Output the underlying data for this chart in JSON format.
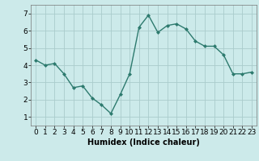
{
  "x": [
    0,
    1,
    2,
    3,
    4,
    5,
    6,
    7,
    8,
    9,
    10,
    11,
    12,
    13,
    14,
    15,
    16,
    17,
    18,
    19,
    20,
    21,
    22,
    23
  ],
  "y": [
    4.3,
    4.0,
    4.1,
    3.5,
    2.7,
    2.8,
    2.1,
    1.7,
    1.2,
    2.3,
    3.5,
    6.2,
    6.9,
    5.9,
    6.3,
    6.4,
    6.1,
    5.4,
    5.1,
    5.1,
    4.6,
    3.5,
    3.5,
    3.6
  ],
  "line_color": "#2d7a6e",
  "marker": "D",
  "marker_size": 2,
  "bg_color": "#cceaea",
  "grid_color": "#aacccc",
  "xlabel": "Humidex (Indice chaleur)",
  "xlabel_fontsize": 7,
  "xlim": [
    -0.5,
    23.5
  ],
  "ylim": [
    0.5,
    7.5
  ],
  "yticks": [
    1,
    2,
    3,
    4,
    5,
    6,
    7
  ],
  "xticks": [
    0,
    1,
    2,
    3,
    4,
    5,
    6,
    7,
    8,
    9,
    10,
    11,
    12,
    13,
    14,
    15,
    16,
    17,
    18,
    19,
    20,
    21,
    22,
    23
  ],
  "tick_fontsize": 6.5,
  "linewidth": 1.0
}
